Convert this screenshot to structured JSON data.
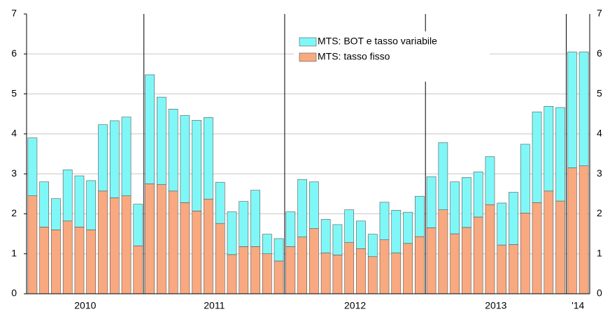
{
  "chart_data": {
    "type": "stacked-bar",
    "categories": [
      null,
      null,
      null,
      null,
      null,
      null,
      null,
      null,
      null,
      null,
      null,
      null,
      null,
      null,
      null,
      null,
      null,
      null,
      null,
      null,
      null,
      null,
      null,
      null,
      null,
      null,
      null,
      null,
      null,
      null,
      null,
      null,
      null,
      null,
      null,
      null,
      null,
      null,
      null,
      null,
      null,
      null,
      null,
      null,
      null,
      null,
      null,
      null
    ],
    "groups": [
      {
        "label": "2010",
        "size": 10
      },
      {
        "label": "2011",
        "size": 12
      },
      {
        "label": "2012",
        "size": 12
      },
      {
        "label": "2013",
        "size": 12
      },
      {
        "label": "'14",
        "size": 2
      }
    ],
    "series": [
      {
        "name": "MTS: tasso fisso",
        "color": "#f9a97f",
        "values": [
          2.45,
          1.67,
          1.6,
          1.82,
          1.67,
          1.6,
          2.57,
          2.4,
          2.45,
          1.2,
          2.75,
          2.73,
          2.57,
          2.28,
          2.07,
          2.37,
          1.76,
          0.98,
          1.18,
          1.18,
          1.0,
          0.82,
          1.18,
          1.42,
          1.63,
          1.02,
          0.97,
          1.28,
          1.13,
          0.93,
          1.35,
          1.02,
          1.26,
          1.43,
          1.65,
          2.1,
          1.5,
          1.66,
          1.92,
          2.23,
          1.22,
          1.23,
          2.02,
          2.28,
          2.57,
          2.32,
          3.15,
          3.2
        ]
      },
      {
        "name": "MTS: BOT e tasso variabile",
        "color": "#80f7f7",
        "values": [
          1.45,
          1.13,
          0.78,
          1.28,
          1.28,
          1.23,
          1.66,
          1.93,
          1.97,
          1.04,
          2.73,
          2.19,
          2.05,
          2.18,
          2.27,
          2.04,
          1.03,
          1.07,
          1.13,
          1.41,
          0.49,
          0.56,
          0.87,
          1.44,
          1.17,
          0.84,
          0.76,
          0.82,
          0.69,
          0.56,
          0.94,
          1.07,
          0.78,
          1.01,
          1.28,
          1.68,
          1.3,
          1.25,
          1.13,
          1.2,
          1.05,
          1.31,
          1.72,
          2.27,
          2.12,
          2.34,
          2.9,
          2.85
        ]
      }
    ],
    "ylim": [
      0,
      7
    ],
    "yticks": [
      0,
      1,
      2,
      3,
      4,
      5,
      6,
      7
    ],
    "grid": true
  }
}
